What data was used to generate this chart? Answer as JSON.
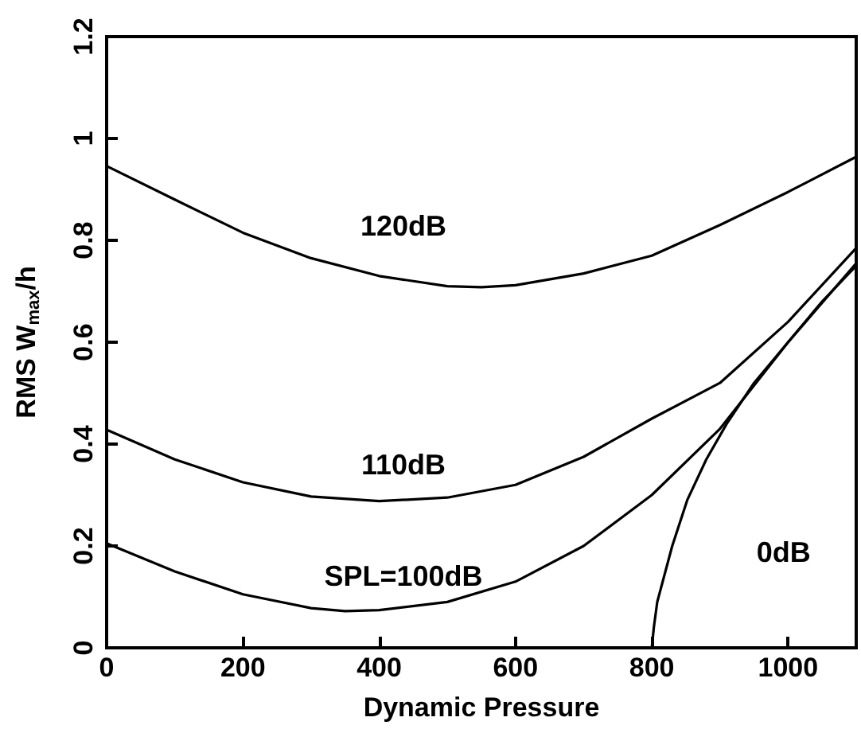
{
  "chart_data": {
    "type": "line",
    "xlabel": "Dynamic Pressure",
    "ylabel": "RMS W$_{max}$/h",
    "xlim": [
      0,
      1100
    ],
    "xticks": [
      0,
      200,
      400,
      600,
      800,
      1000
    ],
    "ylim": [
      0,
      1.2
    ],
    "yticks": [
      0,
      0.2,
      0.4,
      0.6,
      0.8,
      1,
      1.2
    ],
    "grid": false,
    "marker": "none",
    "line_style": "solid",
    "series": [
      {
        "name": "120dB",
        "color": "#000000",
        "x": [
          0,
          100,
          200,
          300,
          400,
          500,
          550,
          600,
          700,
          800,
          900,
          1000,
          1100
        ],
        "values": [
          0.946,
          0.88,
          0.815,
          0.765,
          0.73,
          0.71,
          0.708,
          0.712,
          0.735,
          0.77,
          0.83,
          0.895,
          0.964
        ]
      },
      {
        "name": "110dB",
        "color": "#000000",
        "x": [
          0,
          100,
          200,
          300,
          400,
          500,
          600,
          700,
          800,
          900,
          1000,
          1100
        ],
        "values": [
          0.428,
          0.37,
          0.325,
          0.297,
          0.288,
          0.295,
          0.32,
          0.375,
          0.45,
          0.52,
          0.64,
          0.785
        ]
      },
      {
        "name": "SPL=100dB",
        "color": "#000000",
        "x": [
          0,
          100,
          200,
          300,
          350,
          400,
          500,
          600,
          700,
          800,
          900,
          1000,
          1100
        ],
        "values": [
          0.205,
          0.15,
          0.105,
          0.078,
          0.072,
          0.074,
          0.09,
          0.13,
          0.2,
          0.3,
          0.43,
          0.6,
          0.755
        ]
      },
      {
        "name": "0dB",
        "color": "#000000",
        "x": [
          800,
          803,
          808,
          830,
          852,
          880,
          910,
          950,
          1000,
          1050,
          1100
        ],
        "values": [
          0,
          0.04,
          0.09,
          0.2,
          0.29,
          0.37,
          0.44,
          0.52,
          0.6,
          0.68,
          0.75
        ]
      }
    ]
  }
}
